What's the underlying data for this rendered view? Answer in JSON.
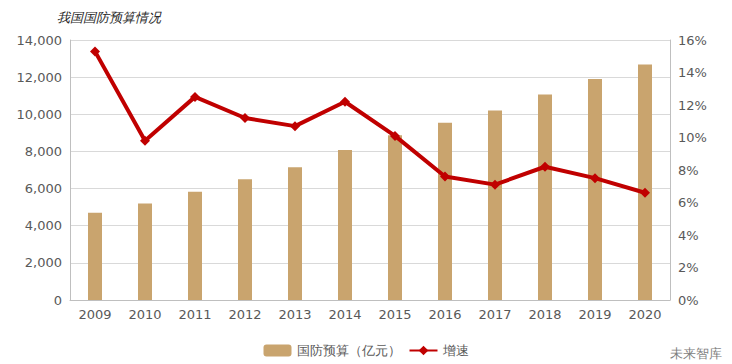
{
  "chart_data": {
    "type": "bar",
    "title": "我国国防预算情况",
    "categories": [
      "2009",
      "2010",
      "2011",
      "2012",
      "2013",
      "2014",
      "2015",
      "2016",
      "2017",
      "2018",
      "2019",
      "2020"
    ],
    "series": [
      {
        "name": "国防预算（亿元）",
        "type": "bar",
        "color": "#C9A46E",
        "values": [
          4700,
          5190,
          5830,
          6500,
          7150,
          8080,
          8870,
          9540,
          10210,
          11070,
          11900,
          12680
        ]
      },
      {
        "name": "增速",
        "type": "line",
        "axis": "y2",
        "color": "#C00000",
        "marker": "diamond",
        "line_style": "solid",
        "values": [
          15.3,
          9.8,
          12.5,
          11.2,
          10.7,
          12.2,
          10.1,
          7.6,
          7.1,
          8.2,
          7.5,
          6.6
        ]
      }
    ],
    "ylim": [
      0,
      14000
    ],
    "yticks": [
      0,
      {
        "value": 2000,
        "label": "2,000"
      },
      {
        "value": 4000,
        "label": "4,000"
      },
      {
        "value": 6000,
        "label": "6,000"
      },
      {
        "value": 8000,
        "label": "8,000"
      },
      {
        "value": 10000,
        "label": "10,000"
      },
      {
        "value": 12000,
        "label": "12,000"
      },
      {
        "value": 14000,
        "label": "14,000"
      }
    ],
    "y2lim": [
      0,
      16
    ],
    "y2ticks": [
      {
        "value": 0,
        "label": "0%"
      },
      {
        "value": 2,
        "label": "2%"
      },
      {
        "value": 4,
        "label": "4%"
      },
      {
        "value": 6,
        "label": "6%"
      },
      {
        "value": 8,
        "label": "8%"
      },
      {
        "value": 10,
        "label": "10%"
      },
      {
        "value": 12,
        "label": "12%"
      },
      {
        "value": 14,
        "label": "14%"
      },
      {
        "value": 16,
        "label": "16%"
      }
    ],
    "grid": true,
    "legend": "bottom",
    "annotations": [
      "未来智库"
    ]
  }
}
